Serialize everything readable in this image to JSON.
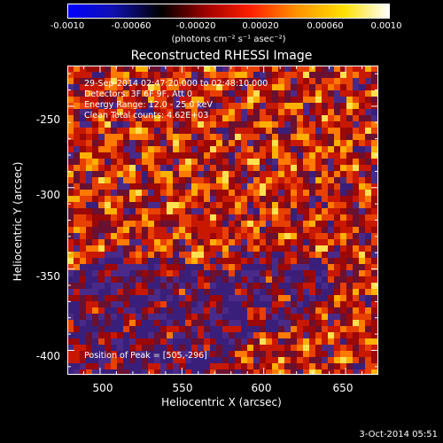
{
  "colorbar": {
    "colors": [
      "#0000ff",
      "#1010b0",
      "#000000",
      "#a00000",
      "#ff2000",
      "#ff9000",
      "#ffe000",
      "#ffffff"
    ],
    "ticks": [
      "-0.0010",
      "-0.00060",
      "-0.00020",
      "0.00020",
      "0.00060",
      "0.0010"
    ],
    "unit": "(photons cm⁻² s⁻¹ asec⁻²)"
  },
  "title": "Reconstructed RHESSI Image",
  "info": {
    "line1": "29-Sep-2014 02:47:20.000 to 02:48:10.000",
    "line2": "Detectors: 3F 6F 9F, Att 0",
    "line3": "Energy Range: 12.0 - 25.0 keV",
    "line4": "Clean     Total counts: 4.62E+03",
    "peak": "Position of Peak = [505,-296]"
  },
  "axes": {
    "xlabel": "Heliocentric X (arcsec)",
    "ylabel": "Heliocentric Y (arcsec)",
    "xticks": [
      "500",
      "550",
      "600",
      "650"
    ],
    "yticks": [
      "-250",
      "-300",
      "-350",
      "-400"
    ],
    "xlim": [
      480,
      670
    ],
    "ylim": [
      -415,
      -225
    ]
  },
  "footer": {
    "date": "3-Oct-2014 05:51"
  },
  "image": {
    "palette": [
      "#3a1f7a",
      "#4a2a88",
      "#6a1030",
      "#9a0808",
      "#c81800",
      "#e84000",
      "#ff7a00",
      "#ffb000",
      "#ffe050"
    ]
  }
}
